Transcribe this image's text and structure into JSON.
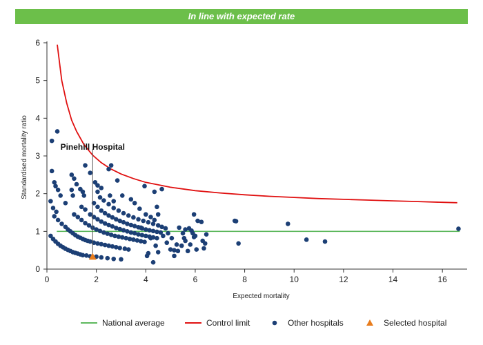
{
  "banner": {
    "text": "In line with expected rate",
    "color": "#6cbf4a"
  },
  "chart_data": {
    "type": "scatter",
    "title": "",
    "xlabel": "Expected mortality",
    "ylabel": "Standardised mortality ratio",
    "xlim": [
      0,
      17
    ],
    "ylim": [
      0,
      6
    ],
    "xticks": [
      "0",
      "2",
      "4",
      "6",
      "8",
      "10",
      "12",
      "14",
      "16"
    ],
    "xtick_values": [
      0,
      2,
      4,
      6,
      8,
      10,
      12,
      14,
      16
    ],
    "yticks": [
      "0",
      "1",
      "2",
      "3",
      "4",
      "5",
      "6"
    ],
    "ytick_values": [
      0,
      1,
      2,
      3,
      4,
      5,
      6
    ],
    "grid": false,
    "legend_position": "bottom",
    "national_average": {
      "name": "National average",
      "value": 1,
      "x_range": [
        0.4,
        16.7
      ],
      "color": "#5cb85c"
    },
    "control_limit": {
      "name": "Control limit",
      "color": "#e01010",
      "points": [
        [
          0.42,
          5.95
        ],
        [
          0.6,
          5.0
        ],
        [
          0.8,
          4.4
        ],
        [
          1.0,
          3.95
        ],
        [
          1.2,
          3.65
        ],
        [
          1.5,
          3.3
        ],
        [
          1.85,
          3.02
        ],
        [
          2.2,
          2.82
        ],
        [
          2.6,
          2.65
        ],
        [
          3.0,
          2.52
        ],
        [
          3.5,
          2.4
        ],
        [
          4.0,
          2.3
        ],
        [
          5.0,
          2.17
        ],
        [
          6.0,
          2.08
        ],
        [
          7.0,
          2.02
        ],
        [
          8.0,
          1.97
        ],
        [
          9.0,
          1.93
        ],
        [
          10.0,
          1.9
        ],
        [
          11.0,
          1.87
        ],
        [
          12.0,
          1.85
        ],
        [
          13.0,
          1.83
        ],
        [
          14.0,
          1.81
        ],
        [
          15.0,
          1.79
        ],
        [
          16.0,
          1.77
        ],
        [
          16.6,
          1.76
        ]
      ]
    },
    "selected_hospital": {
      "name": "Selected hospital",
      "label": "Pinehill Hospital",
      "x": 1.85,
      "y": 0.33,
      "color": "#e87d1e"
    },
    "other_hospitals": {
      "name": "Other hospitals",
      "color": "#1c3f75",
      "points": [
        [
          0.2,
          3.4
        ],
        [
          0.42,
          3.65
        ],
        [
          0.2,
          2.6
        ],
        [
          0.3,
          2.3
        ],
        [
          0.35,
          2.2
        ],
        [
          0.45,
          2.1
        ],
        [
          0.55,
          1.95
        ],
        [
          0.15,
          1.8
        ],
        [
          0.25,
          1.62
        ],
        [
          0.38,
          1.52
        ],
        [
          0.75,
          1.75
        ],
        [
          1.0,
          2.1
        ],
        [
          1.0,
          2.5
        ],
        [
          1.1,
          2.4
        ],
        [
          1.2,
          2.25
        ],
        [
          1.35,
          2.12
        ],
        [
          1.45,
          2.05
        ],
        [
          1.5,
          1.95
        ],
        [
          1.05,
          1.95
        ],
        [
          1.55,
          2.75
        ],
        [
          1.75,
          2.55
        ],
        [
          2.05,
          2.05
        ],
        [
          1.95,
          2.3
        ],
        [
          2.05,
          2.22
        ],
        [
          2.2,
          2.15
        ],
        [
          2.5,
          2.65
        ],
        [
          2.6,
          2.75
        ],
        [
          2.85,
          2.35
        ],
        [
          2.55,
          1.95
        ],
        [
          2.7,
          1.8
        ],
        [
          3.05,
          1.95
        ],
        [
          3.4,
          1.85
        ],
        [
          3.55,
          1.75
        ],
        [
          3.75,
          1.6
        ],
        [
          3.95,
          2.2
        ],
        [
          4.35,
          2.05
        ],
        [
          4.45,
          1.65
        ],
        [
          4.65,
          2.12
        ],
        [
          4.8,
          1.08
        ],
        [
          4.2,
          0.82
        ],
        [
          4.4,
          0.62
        ],
        [
          4.5,
          0.45
        ],
        [
          4.1,
          0.42
        ],
        [
          4.3,
          0.18
        ],
        [
          4.05,
          0.35
        ],
        [
          0.15,
          0.88
        ],
        [
          0.25,
          0.8
        ],
        [
          0.35,
          0.73
        ],
        [
          0.45,
          0.67
        ],
        [
          0.55,
          0.62
        ],
        [
          0.65,
          0.58
        ],
        [
          0.75,
          0.54
        ],
        [
          0.85,
          0.51
        ],
        [
          0.95,
          0.48
        ],
        [
          1.05,
          0.45
        ],
        [
          1.15,
          0.43
        ],
        [
          1.25,
          0.41
        ],
        [
          1.35,
          0.39
        ],
        [
          1.45,
          0.37
        ],
        [
          1.6,
          0.36
        ],
        [
          1.75,
          0.34
        ],
        [
          2.0,
          0.33
        ],
        [
          2.2,
          0.31
        ],
        [
          2.45,
          0.29
        ],
        [
          2.7,
          0.27
        ],
        [
          3.0,
          0.26
        ],
        [
          0.3,
          1.4
        ],
        [
          0.45,
          1.3
        ],
        [
          0.6,
          1.2
        ],
        [
          0.75,
          1.12
        ],
        [
          0.85,
          1.05
        ],
        [
          0.95,
          1.0
        ],
        [
          1.05,
          0.95
        ],
        [
          1.15,
          0.9
        ],
        [
          1.25,
          0.86
        ],
        [
          1.35,
          0.83
        ],
        [
          1.45,
          0.8
        ],
        [
          1.55,
          0.77
        ],
        [
          1.65,
          0.75
        ],
        [
          1.75,
          0.73
        ],
        [
          1.9,
          0.7
        ],
        [
          2.05,
          0.68
        ],
        [
          2.2,
          0.66
        ],
        [
          2.35,
          0.64
        ],
        [
          2.5,
          0.62
        ],
        [
          2.65,
          0.6
        ],
        [
          2.8,
          0.58
        ],
        [
          2.95,
          0.56
        ],
        [
          3.15,
          0.54
        ],
        [
          3.3,
          0.52
        ],
        [
          1.1,
          1.45
        ],
        [
          1.25,
          1.38
        ],
        [
          1.4,
          1.3
        ],
        [
          1.55,
          1.22
        ],
        [
          1.7,
          1.16
        ],
        [
          1.85,
          1.1
        ],
        [
          2.0,
          1.05
        ],
        [
          2.15,
          1.01
        ],
        [
          2.3,
          0.97
        ],
        [
          2.45,
          0.94
        ],
        [
          2.6,
          0.91
        ],
        [
          2.75,
          0.88
        ],
        [
          2.9,
          0.86
        ],
        [
          3.05,
          0.84
        ],
        [
          3.2,
          0.82
        ],
        [
          3.35,
          0.8
        ],
        [
          3.5,
          0.78
        ],
        [
          3.65,
          0.76
        ],
        [
          3.8,
          0.74
        ],
        [
          3.95,
          0.72
        ],
        [
          1.4,
          1.65
        ],
        [
          1.55,
          1.58
        ],
        [
          1.75,
          1.45
        ],
        [
          1.9,
          1.38
        ],
        [
          2.05,
          1.32
        ],
        [
          2.2,
          1.26
        ],
        [
          2.35,
          1.21
        ],
        [
          2.5,
          1.17
        ],
        [
          2.65,
          1.13
        ],
        [
          2.8,
          1.09
        ],
        [
          2.95,
          1.06
        ],
        [
          3.1,
          1.03
        ],
        [
          3.25,
          1.0
        ],
        [
          3.4,
          0.97
        ],
        [
          3.55,
          0.95
        ],
        [
          3.7,
          0.92
        ],
        [
          3.85,
          0.9
        ],
        [
          4.0,
          0.88
        ],
        [
          4.15,
          0.86
        ],
        [
          4.3,
          0.84
        ],
        [
          4.45,
          0.82
        ],
        [
          1.9,
          1.75
        ],
        [
          2.05,
          1.65
        ],
        [
          2.2,
          1.55
        ],
        [
          2.35,
          1.48
        ],
        [
          2.5,
          1.42
        ],
        [
          2.65,
          1.37
        ],
        [
          2.8,
          1.32
        ],
        [
          2.95,
          1.28
        ],
        [
          3.1,
          1.24
        ],
        [
          3.25,
          1.2
        ],
        [
          3.4,
          1.17
        ],
        [
          3.55,
          1.14
        ],
        [
          3.7,
          1.11
        ],
        [
          3.85,
          1.08
        ],
        [
          4.0,
          1.05
        ],
        [
          4.15,
          1.03
        ],
        [
          4.3,
          1.01
        ],
        [
          4.45,
          0.99
        ],
        [
          4.6,
          0.97
        ],
        [
          2.15,
          1.9
        ],
        [
          2.3,
          1.82
        ],
        [
          2.5,
          1.72
        ],
        [
          2.7,
          1.62
        ],
        [
          2.9,
          1.55
        ],
        [
          3.1,
          1.48
        ],
        [
          3.3,
          1.42
        ],
        [
          3.5,
          1.37
        ],
        [
          3.7,
          1.32
        ],
        [
          3.9,
          1.28
        ],
        [
          4.1,
          1.24
        ],
        [
          4.3,
          1.2
        ],
        [
          4.5,
          1.16
        ],
        [
          4.65,
          1.12
        ],
        [
          4.0,
          1.45
        ],
        [
          4.2,
          1.38
        ],
        [
          4.35,
          1.3
        ],
        [
          4.5,
          1.45
        ],
        [
          3.8,
          1.1
        ],
        [
          4.7,
          0.88
        ],
        [
          4.85,
          0.7
        ],
        [
          5.0,
          0.52
        ],
        [
          5.15,
          0.5
        ],
        [
          5.3,
          0.48
        ],
        [
          5.15,
          0.35
        ],
        [
          5.35,
          1.1
        ],
        [
          5.5,
          0.95
        ],
        [
          5.6,
          0.75
        ],
        [
          5.45,
          0.62
        ],
        [
          5.7,
          0.48
        ],
        [
          5.6,
          1.05
        ],
        [
          5.75,
          1.08
        ],
        [
          5.85,
          1.02
        ],
        [
          5.9,
          0.95
        ],
        [
          5.95,
          0.85
        ],
        [
          5.8,
          0.65
        ],
        [
          6.0,
          0.88
        ],
        [
          6.1,
          1.28
        ],
        [
          5.95,
          1.45
        ],
        [
          6.25,
          1.25
        ],
        [
          6.3,
          0.75
        ],
        [
          6.4,
          0.68
        ],
        [
          6.45,
          0.92
        ],
        [
          6.35,
          0.55
        ],
        [
          5.25,
          0.65
        ],
        [
          5.55,
          0.82
        ],
        [
          6.05,
          0.52
        ],
        [
          4.9,
          0.95
        ],
        [
          5.05,
          0.82
        ],
        [
          7.6,
          1.28
        ],
        [
          7.65,
          1.27
        ],
        [
          7.75,
          0.68
        ],
        [
          9.75,
          1.2
        ],
        [
          10.5,
          0.78
        ],
        [
          11.25,
          0.73
        ],
        [
          16.65,
          1.07
        ]
      ]
    }
  },
  "legend": {
    "items": [
      {
        "label": "National average",
        "kind": "line",
        "color": "#5cb85c"
      },
      {
        "label": "Control limit",
        "kind": "line",
        "color": "#e01010"
      },
      {
        "label": "Other hospitals",
        "kind": "dot",
        "color": "#1c3f75"
      },
      {
        "label": "Selected hospital",
        "kind": "triangle",
        "color": "#e87d1e"
      }
    ]
  }
}
